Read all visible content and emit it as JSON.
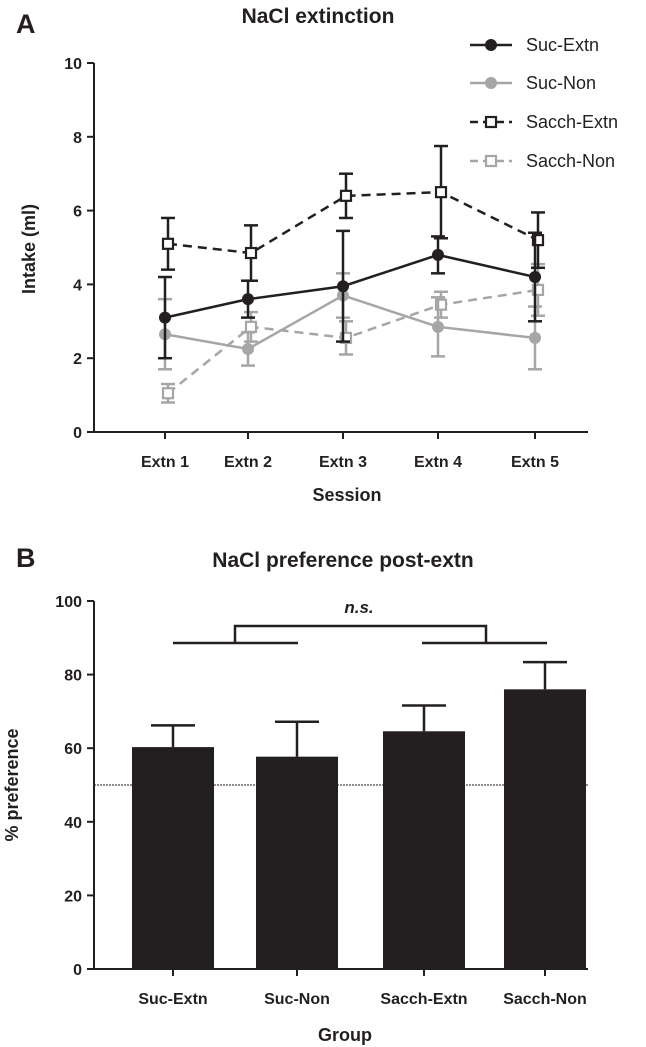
{
  "panels": {
    "a_letter": "A",
    "b_letter": "B"
  },
  "chart_data": [
    {
      "type": "line",
      "title": "NaCl extinction",
      "xlabel": "Session",
      "ylabel": "Intake (ml)",
      "categories": [
        "Extn 1",
        "Extn 2",
        "Extn 3",
        "Extn 4",
        "Extn 5"
      ],
      "ylim": [
        0,
        10
      ],
      "yticks": [
        0,
        2,
        4,
        6,
        8,
        10
      ],
      "legend_position": "top-right",
      "series": [
        {
          "name": "Suc-Extn",
          "values": [
            3.1,
            3.6,
            3.95,
            4.8,
            4.2
          ],
          "errors": [
            1.1,
            0.5,
            1.5,
            0.5,
            1.2
          ],
          "color": "#231f20",
          "dashed": false,
          "marker": "circle"
        },
        {
          "name": "Suc-Non",
          "values": [
            2.65,
            2.25,
            3.7,
            2.85,
            2.55
          ],
          "errors": [
            0.95,
            0.45,
            0.6,
            0.8,
            0.85
          ],
          "color": "#a6a6a6",
          "dashed": false,
          "marker": "circle"
        },
        {
          "name": "Sacch-Extn",
          "values": [
            5.1,
            4.85,
            6.4,
            6.5,
            5.2
          ],
          "errors": [
            0.7,
            0.75,
            0.6,
            1.25,
            0.75
          ],
          "color": "#231f20",
          "dashed": true,
          "marker": "square"
        },
        {
          "name": "Sacch-Non",
          "values": [
            1.05,
            2.85,
            2.55,
            3.45,
            3.85
          ],
          "errors": [
            0.25,
            0.4,
            0.45,
            0.35,
            0.7
          ],
          "color": "#a6a6a6",
          "dashed": true,
          "marker": "square"
        }
      ]
    },
    {
      "type": "bar",
      "title": "NaCl preference post-extn",
      "xlabel": "Group",
      "ylabel": "% preference",
      "categories": [
        "Suc-Extn",
        "Suc-Non",
        "Sacch-Extn",
        "Sacch-Non"
      ],
      "values": [
        60.3,
        57.7,
        64.6,
        76.0
      ],
      "errors": [
        5.9,
        9.5,
        7.0,
        7.4
      ],
      "ylim": [
        0,
        100
      ],
      "yticks": [
        0,
        20,
        40,
        60,
        80,
        100
      ],
      "reference_line": 50,
      "bar_color": "#231f20",
      "annotation": "n.s."
    }
  ]
}
